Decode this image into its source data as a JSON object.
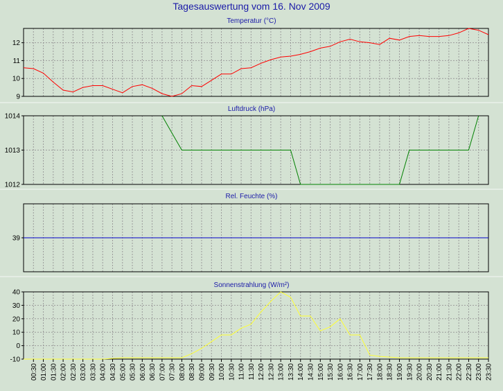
{
  "title": "Tagesauswertung vom 16. Nov 2009",
  "colors": {
    "background": "#d4e2d3",
    "grid": "#9a9a9a",
    "axis": "#000000",
    "panel_title": "#1a1aa8",
    "temperature": "#ff0000",
    "pressure": "#008000",
    "humidity": "#0000c8",
    "solar": "#ffff33"
  },
  "time_labels": [
    "00:30",
    "01:00",
    "01:30",
    "02:00",
    "02:30",
    "03:00",
    "03:30",
    "04:00",
    "04:30",
    "05:00",
    "05:30",
    "06:00",
    "06:30",
    "07:00",
    "07:30",
    "08:00",
    "08:30",
    "09:00",
    "09:30",
    "10:00",
    "10:30",
    "11:00",
    "11:30",
    "12:00",
    "12:30",
    "13:00",
    "13:30",
    "14:00",
    "14:30",
    "15:00",
    "15:30",
    "16:00",
    "16:30",
    "17:00",
    "17:30",
    "18:00",
    "18:30",
    "19:00",
    "19:30",
    "20:00",
    "20:30",
    "21:00",
    "21:30",
    "22:00",
    "22:30",
    "23:00",
    "23:30"
  ],
  "chart_data": [
    {
      "type": "line",
      "title": "Temperatur (°C)",
      "color": "#ff0000",
      "ylim": [
        9,
        12.8
      ],
      "yticks": [
        9,
        10,
        11,
        12
      ],
      "x": [
        "00:00",
        "00:30",
        "01:00",
        "01:30",
        "02:00",
        "02:30",
        "03:00",
        "03:30",
        "04:00",
        "04:30",
        "05:00",
        "05:30",
        "06:00",
        "06:30",
        "07:00",
        "07:30",
        "08:00",
        "08:30",
        "09:00",
        "09:30",
        "10:00",
        "10:30",
        "11:00",
        "11:30",
        "12:00",
        "12:30",
        "13:00",
        "13:30",
        "14:00",
        "14:30",
        "15:00",
        "15:30",
        "16:00",
        "16:30",
        "17:00",
        "17:30",
        "18:00",
        "18:30",
        "19:00",
        "19:30",
        "20:00",
        "20:30",
        "21:00",
        "21:30",
        "22:00",
        "22:30",
        "23:00",
        "23:30"
      ],
      "values": [
        10.6,
        10.55,
        10.3,
        9.8,
        9.35,
        9.25,
        9.5,
        9.6,
        9.6,
        9.4,
        9.2,
        9.55,
        9.65,
        9.45,
        9.15,
        9.0,
        9.15,
        9.6,
        9.55,
        9.9,
        10.25,
        10.25,
        10.55,
        10.6,
        10.85,
        11.05,
        11.2,
        11.25,
        11.35,
        11.5,
        11.7,
        11.8,
        12.05,
        12.2,
        12.05,
        12.0,
        11.9,
        12.25,
        12.15,
        12.35,
        12.4,
        12.35,
        12.35,
        12.4,
        12.55,
        12.8,
        12.7,
        12.45
      ]
    },
    {
      "type": "line",
      "title": "Luftdruck (hPa)",
      "color": "#008000",
      "ylim": [
        1012,
        1014
      ],
      "yticks": [
        1012,
        1013,
        1014
      ],
      "x": [
        "07:00",
        "07:30",
        "08:00",
        "13:30",
        "14:00",
        "19:00",
        "19:30",
        "22:30",
        "23:00"
      ],
      "values": [
        1014.0,
        1013.5,
        1013.0,
        1013.0,
        1012.0,
        1012.0,
        1013.0,
        1013.0,
        1014.0
      ]
    },
    {
      "type": "line",
      "title": "Rel. Feuchte (%)",
      "color": "#0000c8",
      "ylim": [
        38,
        40
      ],
      "yticks": [
        39
      ],
      "x": [
        "00:00",
        "23:30"
      ],
      "values": [
        39,
        39
      ]
    },
    {
      "type": "line",
      "title": "Sonnenstrahlung (W/m²)",
      "color": "#ffff33",
      "ylim": [
        -10,
        40
      ],
      "yticks": [
        -10,
        0,
        10,
        20,
        30,
        40
      ],
      "x": [
        "00:00",
        "01:00",
        "02:00",
        "03:00",
        "04:00",
        "05:00",
        "06:00",
        "07:00",
        "08:00",
        "08:30",
        "09:00",
        "09:30",
        "10:00",
        "10:30",
        "11:00",
        "11:30",
        "12:00",
        "12:30",
        "13:00",
        "13:30",
        "14:00",
        "14:30",
        "15:00",
        "15:30",
        "16:00",
        "16:30",
        "17:00",
        "17:30",
        "18:00",
        "19:00",
        "20:00",
        "21:00",
        "22:00",
        "23:00",
        "23:30"
      ],
      "values": [
        -10,
        -10,
        -10,
        -10,
        -10,
        -9,
        -9,
        -9,
        -9,
        -6,
        -2,
        3,
        8,
        8,
        13,
        16,
        25,
        33,
        40,
        36,
        22,
        22,
        11,
        14,
        20,
        8,
        8,
        -7,
        -8,
        -9,
        -9,
        -9,
        -9,
        -9,
        -9
      ]
    }
  ]
}
